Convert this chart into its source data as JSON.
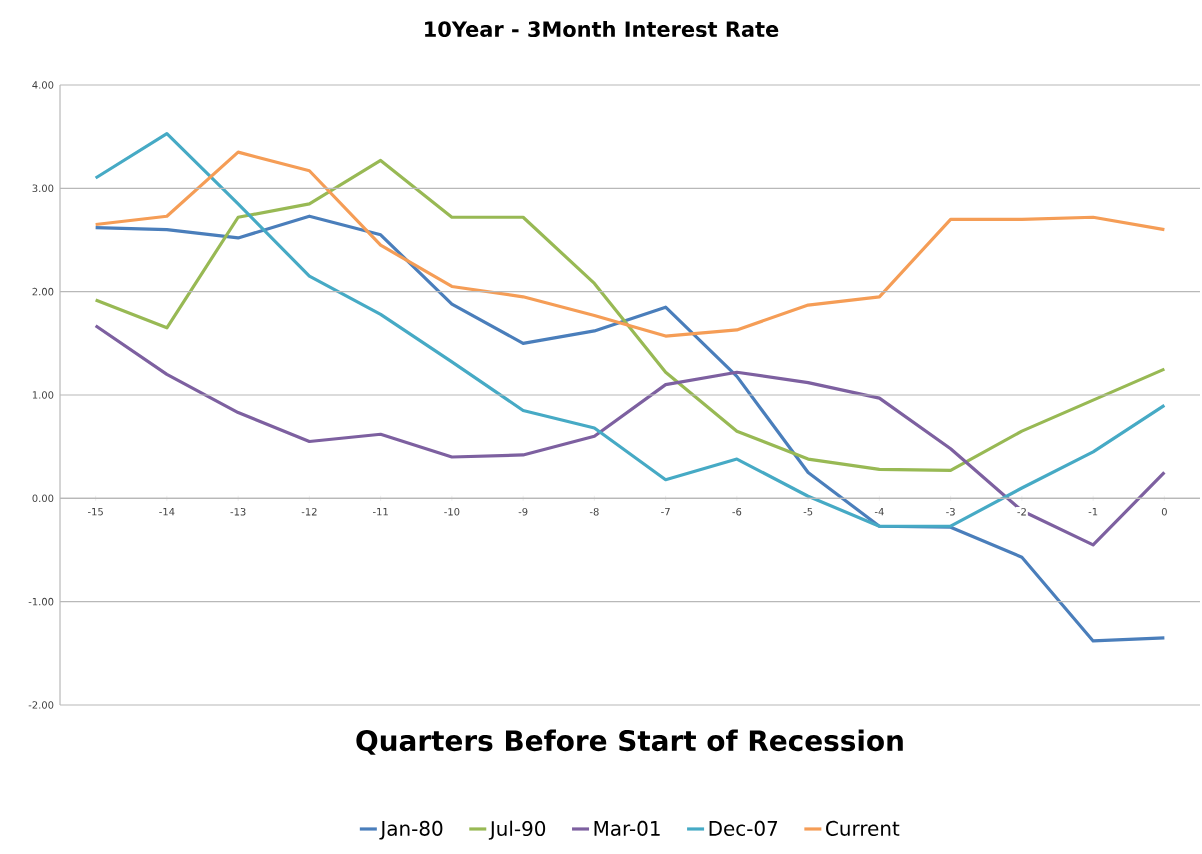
{
  "chart_data": {
    "type": "line",
    "title": "10Year - 3Month Interest Rate",
    "xlabel": "Quarters Before Start of Recession",
    "x": [
      -15,
      -14,
      -13,
      -12,
      -11,
      -10,
      -9,
      -8,
      -7,
      -6,
      -5,
      -4,
      -3,
      -2,
      -1,
      0
    ],
    "series": [
      {
        "name": "Jan-80",
        "color": "#4a7ebb",
        "values": [
          2.62,
          2.6,
          2.52,
          2.73,
          2.55,
          1.88,
          1.5,
          1.62,
          1.85,
          1.18,
          0.25,
          -0.27,
          -0.28,
          -0.57,
          -1.38,
          -1.35
        ]
      },
      {
        "name": "Jul-90",
        "color": "#98b954",
        "values": [
          1.92,
          1.65,
          2.72,
          2.85,
          3.27,
          2.72,
          2.72,
          2.08,
          1.22,
          0.65,
          0.38,
          0.28,
          0.27,
          0.65,
          0.95,
          1.25
        ]
      },
      {
        "name": "Mar-01",
        "color": "#7d60a0",
        "values": [
          1.67,
          1.2,
          0.83,
          0.55,
          0.62,
          0.4,
          0.42,
          0.6,
          1.1,
          1.22,
          1.12,
          0.97,
          0.48,
          -0.12,
          -0.45,
          0.25
        ]
      },
      {
        "name": "Dec-07",
        "color": "#46aac5",
        "values": [
          3.1,
          3.53,
          2.85,
          2.15,
          1.78,
          1.32,
          0.85,
          0.68,
          0.18,
          0.38,
          0.02,
          -0.27,
          -0.27,
          0.1,
          0.45,
          0.9
        ]
      },
      {
        "name": "Current",
        "color": "#f59d56",
        "values": [
          2.65,
          2.73,
          3.35,
          3.17,
          2.45,
          2.05,
          1.95,
          1.77,
          1.57,
          1.63,
          1.87,
          1.95,
          2.7,
          2.7,
          2.72,
          2.6
        ]
      }
    ],
    "xlim": [
      -15.5,
      0.5
    ],
    "xticks": [
      -15,
      -14,
      -13,
      -12,
      -11,
      -10,
      -9,
      -8,
      -7,
      -6,
      -5,
      -4,
      -3,
      -2,
      -1,
      0
    ],
    "ylim": [
      -2,
      4
    ],
    "yticks": [
      {
        "value": -2,
        "label": "-2.00"
      },
      {
        "value": -1,
        "label": "-1.00"
      },
      {
        "value": 0,
        "label": "0.00"
      },
      {
        "value": 1,
        "label": "1.00"
      },
      {
        "value": 2,
        "label": "2.00"
      },
      {
        "value": 3,
        "label": "3.00"
      },
      {
        "value": 4,
        "label": "4.00"
      }
    ],
    "grid": "y",
    "legend": "bottom",
    "marker": "none",
    "line_style": "solid"
  }
}
